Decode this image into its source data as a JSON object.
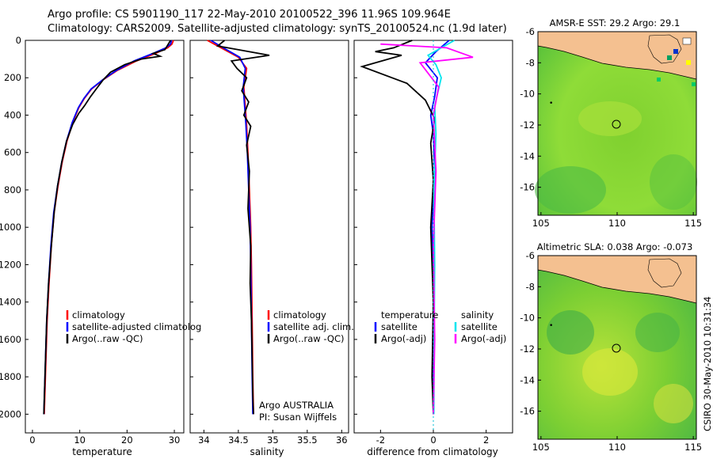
{
  "title_line1": "Argo profile: CS 5901190_117 22-May-2010 20100522_396 11.96S 109.964E",
  "title_line2": "Climatology: CARS2009. Satellite-adjusted climatology: synTS_20100524.nc (1.9d later)",
  "side_credit": "CSIRO 30-May-2010 10:31:34",
  "colors": {
    "climatology": "#ff0000",
    "satellite": "#0000ff",
    "argo": "#000000",
    "sat_salinity": "#00e5ee",
    "argo_salinity": "#ff00ff",
    "land": "#f4c090",
    "coast": "#000000"
  },
  "chart_data": [
    {
      "type": "line",
      "xlabel": "temperature",
      "xlim": [
        -1.5,
        32
      ],
      "ylim": [
        0,
        2100
      ],
      "y_reversed": true,
      "xticks": [
        0,
        10,
        20,
        30
      ],
      "yticks": [
        0,
        200,
        400,
        600,
        800,
        1000,
        1200,
        1400,
        1600,
        1800,
        2000
      ],
      "legend": [
        "climatology",
        "satellite-adjusted climatolog",
        "Argo(..raw -QC)"
      ],
      "series": [
        {
          "name": "climatology",
          "color": "#ff0000",
          "x": [
            29.8,
            29.5,
            28.6,
            26.0,
            22.0,
            18.0,
            15.0,
            12.5,
            11.0,
            9.8,
            8.5,
            7.3,
            6.3,
            5.4,
            4.6,
            4.0,
            3.5,
            3.1,
            2.8,
            2.5
          ],
          "y": [
            0,
            20,
            40,
            70,
            110,
            160,
            210,
            260,
            310,
            360,
            440,
            540,
            650,
            780,
            920,
            1100,
            1300,
            1500,
            1750,
            2000
          ]
        },
        {
          "name": "satellite-adjusted climatolog",
          "color": "#0000ff",
          "x": [
            29.4,
            29.2,
            28.2,
            25.5,
            21.5,
            17.8,
            14.9,
            12.4,
            10.9,
            9.7,
            8.4,
            7.2,
            6.2,
            5.3,
            4.5,
            3.9,
            3.4,
            3.0,
            2.7,
            2.4
          ],
          "y": [
            0,
            20,
            40,
            70,
            110,
            160,
            210,
            260,
            310,
            360,
            440,
            540,
            650,
            780,
            920,
            1100,
            1300,
            1500,
            1750,
            2000
          ]
        },
        {
          "name": "Argo(..raw -QC)",
          "color": "#000000",
          "x": [
            29.2,
            28.0,
            25.5,
            27.0,
            23.0,
            19.5,
            16.5,
            15.0,
            13.8,
            12.3,
            11.0,
            9.8,
            8.5,
            7.2,
            6.2,
            5.3,
            4.6,
            4.0,
            3.4,
            3.0,
            2.7,
            2.4
          ],
          "y": [
            0,
            50,
            70,
            85,
            100,
            130,
            170,
            210,
            250,
            300,
            350,
            390,
            450,
            540,
            650,
            780,
            920,
            1100,
            1300,
            1500,
            1750,
            2000
          ]
        }
      ]
    },
    {
      "type": "line",
      "xlabel": "salinity",
      "xlim": [
        33.8,
        36.1
      ],
      "ylim": [
        0,
        2100
      ],
      "y_reversed": true,
      "xticks": [
        34,
        34.5,
        35,
        35.5,
        36
      ],
      "legend": [
        "climatology",
        "satellite adj. clim.",
        "Argo(..raw -QC)"
      ],
      "annotations": [
        "Argo AUSTRALIA",
        "PI: Susan Wijffels"
      ],
      "series": [
        {
          "name": "climatology",
          "color": "#ff0000",
          "x": [
            34.05,
            34.25,
            34.5,
            34.62,
            34.58,
            34.6,
            34.62,
            34.64,
            34.66,
            34.68,
            34.69,
            34.7,
            34.71,
            34.72
          ],
          "y": [
            0,
            40,
            90,
            150,
            250,
            350,
            450,
            600,
            800,
            1000,
            1200,
            1500,
            1800,
            2000
          ]
        },
        {
          "name": "satellite adj. clim.",
          "color": "#0000ff",
          "x": [
            34.1,
            34.28,
            34.52,
            34.6,
            34.57,
            34.59,
            34.61,
            34.63,
            34.65,
            34.67,
            34.68,
            34.69,
            34.7,
            34.71
          ],
          "y": [
            0,
            40,
            90,
            150,
            250,
            350,
            450,
            600,
            800,
            1000,
            1200,
            1500,
            1800,
            2000
          ]
        },
        {
          "name": "Argo(..raw -QC)",
          "color": "#000000",
          "x": [
            34.3,
            34.2,
            34.95,
            34.4,
            34.48,
            34.62,
            34.55,
            34.65,
            34.58,
            34.68,
            34.62,
            34.66,
            34.64,
            34.68,
            34.67,
            34.69,
            34.7,
            34.71,
            34.72
          ],
          "y": [
            0,
            30,
            80,
            110,
            150,
            200,
            270,
            330,
            400,
            460,
            560,
            700,
            900,
            1100,
            1300,
            1500,
            1700,
            1900,
            2000
          ]
        }
      ]
    },
    {
      "type": "line",
      "xlabel": "difference from climatology",
      "xlim": [
        -3,
        3
      ],
      "ylim": [
        0,
        2100
      ],
      "y_reversed": true,
      "xticks": [
        -2,
        0,
        2
      ],
      "legend_temperature": [
        "temperature",
        "satellite",
        "Argo(-adj)"
      ],
      "legend_salinity": [
        "salinity",
        "satellite",
        "Argo(-adj)"
      ],
      "series": [
        {
          "name": "satellite",
          "group": "temperature",
          "color": "#0000ff",
          "x": [
            0.6,
            0.1,
            -0.3,
            0.15,
            0.05,
            -0.1,
            0.0,
            0.05,
            -0.05,
            0.0,
            -0.02,
            0.0
          ],
          "y": [
            0,
            60,
            120,
            200,
            300,
            400,
            500,
            700,
            1000,
            1400,
            1800,
            2000
          ]
        },
        {
          "name": "Argo(-adj)",
          "group": "temperature",
          "color": "#000000",
          "x": [
            -0.8,
            -1.5,
            -2.2,
            -1.2,
            -2.7,
            -1.0,
            -0.3,
            0.05,
            -0.1,
            0.0,
            -0.1,
            0.0,
            -0.05,
            0.0
          ],
          "y": [
            0,
            40,
            60,
            80,
            140,
            230,
            320,
            420,
            550,
            750,
            1000,
            1400,
            1800,
            2000
          ]
        },
        {
          "name": "satellite",
          "group": "salinity",
          "color": "#00e5ee",
          "x": [
            0.8,
            0.3,
            -0.2,
            0.1,
            0.3,
            0.05,
            0.1,
            0.02,
            0.05,
            0.03,
            0.02
          ],
          "y": [
            0,
            40,
            80,
            130,
            200,
            350,
            500,
            800,
            1200,
            1600,
            2000
          ]
        },
        {
          "name": "Argo(-adj)",
          "group": "salinity",
          "color": "#ff00ff",
          "x": [
            -2.0,
            0.5,
            1.5,
            -0.5,
            0.2,
            0.0,
            0.1,
            0.0,
            0.05,
            0.0
          ],
          "y": [
            20,
            40,
            90,
            120,
            250,
            400,
            700,
            1100,
            1600,
            2000
          ]
        }
      ]
    },
    {
      "type": "heatmap",
      "title": "AMSR-E SST: 29.2 Argo: 29.1",
      "xlim": [
        104.8,
        115.2
      ],
      "ylim": [
        -17.8,
        -6
      ],
      "xticks": [
        105,
        110,
        115
      ],
      "yticks": [
        -6,
        -8,
        -10,
        -12,
        -14,
        -16
      ],
      "marker": {
        "lon": 109.964,
        "lat": -11.96
      }
    },
    {
      "type": "heatmap",
      "title": "Altimetric SLA: 0.038 Argo: -0.073",
      "xlim": [
        104.8,
        115.2
      ],
      "ylim": [
        -17.8,
        -6
      ],
      "xticks": [
        105,
        110,
        115
      ],
      "yticks": [
        -6,
        -8,
        -10,
        -12,
        -14,
        -16
      ],
      "marker": {
        "lon": 109.964,
        "lat": -11.96
      }
    }
  ]
}
